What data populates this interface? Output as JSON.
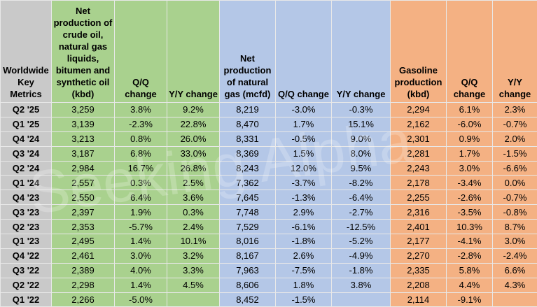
{
  "table": {
    "headers": [
      "Worldwide Key Metrics",
      "Net production of crude oil, natural gas liquids, bitumen and synthetic oil (kbd)",
      "Q/Q change",
      "Y/Y change",
      "Net production of natural gas (mcfd)",
      "Q/Q change",
      "Y/Y change",
      "Gasoline production (kbd)",
      "Q/Q change",
      "Y/Y change"
    ],
    "rows": [
      [
        "Q2 '25",
        "3,259",
        "3.8%",
        "9.2%",
        "8,219",
        "-3.0%",
        "-0.3%",
        "2,294",
        "6.1%",
        "2.3%"
      ],
      [
        "Q1 '25",
        "3,139",
        "-2.3%",
        "22.8%",
        "8,470",
        "1.7%",
        "15.1%",
        "2,162",
        "-6.0%",
        "-0.7%"
      ],
      [
        "Q4 '24",
        "3,213",
        "0.8%",
        "26.0%",
        "8,331",
        "-0.5%",
        "9.0%",
        "2,301",
        "0.9%",
        "2.0%"
      ],
      [
        "Q3 '24",
        "3,187",
        "6.8%",
        "33.0%",
        "8,369",
        "1.5%",
        "8.0%",
        "2,281",
        "1.7%",
        "-1.5%"
      ],
      [
        "Q2 '24",
        "2,984",
        "16.7%",
        "26.8%",
        "8,243",
        "12.0%",
        "9.5%",
        "2,243",
        "3.0%",
        "-6.6%"
      ],
      [
        "Q1 '24",
        "2,557",
        "0.3%",
        "2.5%",
        "7,362",
        "-3.7%",
        "-8.2%",
        "2,178",
        "-3.4%",
        "0.0%"
      ],
      [
        "Q4 '23",
        "2,550",
        "6.4%",
        "3.6%",
        "7,645",
        "-1.3%",
        "-6.4%",
        "2,255",
        "-2.6%",
        "-0.7%"
      ],
      [
        "Q3 '23",
        "2,397",
        "1.9%",
        "0.3%",
        "7,748",
        "2.9%",
        "-2.7%",
        "2,316",
        "-3.5%",
        "-0.8%"
      ],
      [
        "Q2 '23",
        "2,353",
        "-5.7%",
        "2.4%",
        "7,529",
        "-6.1%",
        "-12.5%",
        "2,401",
        "10.3%",
        "8.7%"
      ],
      [
        "Q1 '23",
        "2,495",
        "1.4%",
        "10.1%",
        "8,016",
        "-1.8%",
        "-5.2%",
        "2,177",
        "-4.1%",
        "3.0%"
      ],
      [
        "Q4 '22",
        "2,461",
        "3.0%",
        "3.2%",
        "8,167",
        "2.6%",
        "-4.9%",
        "2,270",
        "-2.8%",
        "-2.4%"
      ],
      [
        "Q3 '22",
        "2,389",
        "4.0%",
        "3.3%",
        "7,963",
        "-7.5%",
        "-1.8%",
        "2,335",
        "5.8%",
        "6.6%"
      ],
      [
        "Q2 '22",
        "2,298",
        "1.4%",
        "4.5%",
        "8,606",
        "1.8%",
        "3.8%",
        "2,208",
        "4.4%",
        "4.3%"
      ],
      [
        "Q1 '22",
        "2,266",
        "-5.0%",
        null,
        "8,452",
        "-1.5%",
        null,
        "2,114",
        "-9.1%",
        null
      ]
    ]
  },
  "watermark": "Seeking Alpha"
}
